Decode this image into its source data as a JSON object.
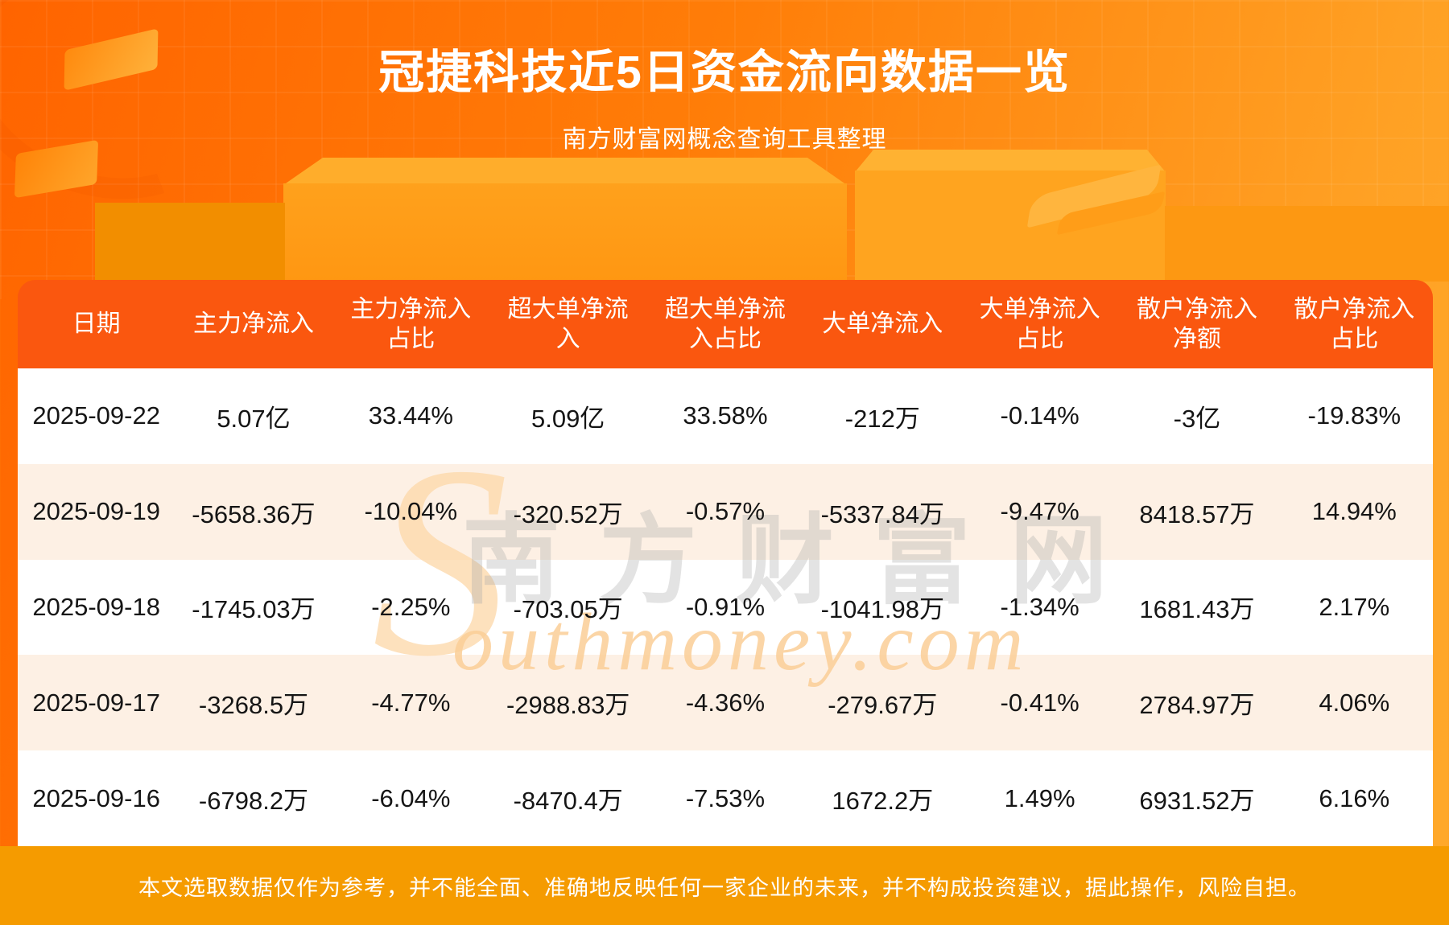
{
  "page": {
    "title": "冠捷科技近5日资金流向数据一览",
    "subtitle": "南方财富网概念查询工具整理",
    "disclaimer": "本文选取数据仅作为参考，并不能全面、准确地反映任何一家企业的未来，并不构成投资建议，据此操作，风险自担。"
  },
  "watermark": {
    "s": "S",
    "cn": "南方财富网",
    "en": "outhmoney.com"
  },
  "colors": {
    "page_gradient_start": "#ff6400",
    "page_gradient_mid": "#ff7d08",
    "page_gradient_end": "#ffa124",
    "header_bg": "#fa570f",
    "row_cream_bg": "#fdf0e4",
    "row_white_bg": "#ffffff",
    "footer_bg": "#f59b00",
    "cell_text": "#151515"
  },
  "table": {
    "headers": [
      "日期",
      "主力净流入",
      "主力净流入\n占比",
      "超大单净流\n入",
      "超大单净流\n入占比",
      "大单净流入",
      "大单净流入\n占比",
      "散户净流入\n净额",
      "散户净流入\n占比"
    ],
    "rows": [
      {
        "cells": [
          "2025-09-22",
          "5.07亿",
          "33.44%",
          "5.09亿",
          "33.58%",
          "-212万",
          "-0.14%",
          "-3亿",
          "-19.83%"
        ]
      },
      {
        "cells": [
          "2025-09-19",
          "-5658.36万",
          "-10.04%",
          "-320.52万",
          "-0.57%",
          "-5337.84万",
          "-9.47%",
          "8418.57万",
          "14.94%"
        ]
      },
      {
        "cells": [
          "2025-09-18",
          "-1745.03万",
          "-2.25%",
          "-703.05万",
          "-0.91%",
          "-1041.98万",
          "-1.34%",
          "1681.43万",
          "2.17%"
        ]
      },
      {
        "cells": [
          "2025-09-17",
          "-3268.5万",
          "-4.77%",
          "-2988.83万",
          "-4.36%",
          "-279.67万",
          "-0.41%",
          "2784.97万",
          "4.06%"
        ]
      },
      {
        "cells": [
          "2025-09-16",
          "-6798.2万",
          "-6.04%",
          "-8470.4万",
          "-7.53%",
          "1672.2万",
          "1.49%",
          "6931.52万",
          "6.16%"
        ]
      }
    ]
  },
  "chart_data": {
    "type": "table",
    "title": "冠捷科技近5日资金流向数据一览",
    "subtitle": "南方财富网概念查询工具整理",
    "columns": [
      "日期",
      "主力净流入",
      "主力净流入占比",
      "超大单净流入",
      "超大单净流入占比",
      "大单净流入",
      "大单净流入占比",
      "散户净流入净额",
      "散户净流入占比"
    ],
    "rows": [
      [
        "2025-09-22",
        "5.07亿",
        "33.44%",
        "5.09亿",
        "33.58%",
        "-212万",
        "-0.14%",
        "-3亿",
        "-19.83%"
      ],
      [
        "2025-09-19",
        "-5658.36万",
        "-10.04%",
        "-320.52万",
        "-0.57%",
        "-5337.84万",
        "-9.47%",
        "8418.57万",
        "14.94%"
      ],
      [
        "2025-09-18",
        "-1745.03万",
        "-2.25%",
        "-703.05万",
        "-0.91%",
        "-1041.98万",
        "-1.34%",
        "1681.43万",
        "2.17%"
      ],
      [
        "2025-09-17",
        "-3268.5万",
        "-4.77%",
        "-2988.83万",
        "-4.36%",
        "-279.67万",
        "-0.41%",
        "2784.97万",
        "4.06%"
      ],
      [
        "2025-09-16",
        "-6798.2万",
        "-6.04%",
        "-8470.4万",
        "-7.53%",
        "1672.2万",
        "1.49%",
        "6931.52万",
        "6.16%"
      ]
    ]
  }
}
